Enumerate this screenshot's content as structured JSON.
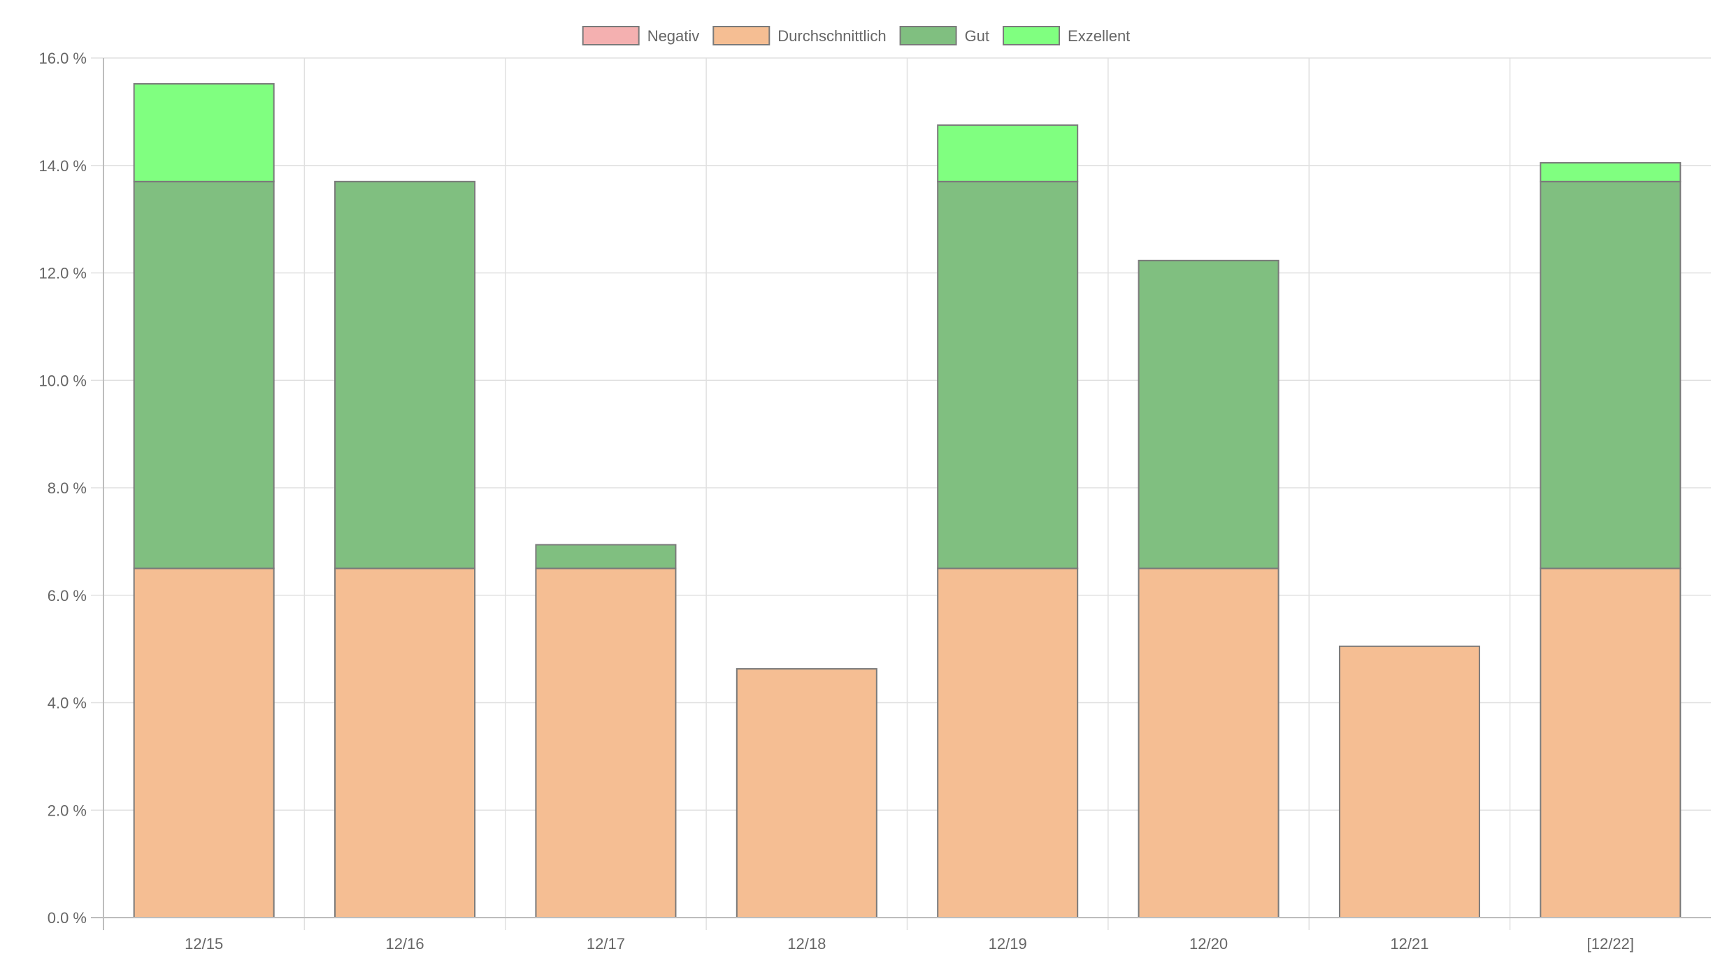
{
  "chart_data": {
    "type": "bar",
    "stacked": true,
    "title": "",
    "xlabel": "",
    "ylabel": "",
    "categories": [
      "12/15",
      "12/16",
      "12/17",
      "12/18",
      "12/19",
      "12/20",
      "12/21",
      "[12/22]"
    ],
    "series": [
      {
        "name": "Negativ",
        "color": "#f4b0b0",
        "values": [
          0,
          0,
          0,
          0,
          0,
          0,
          0,
          0
        ]
      },
      {
        "name": "Durchschnittlich",
        "color": "#f5be93",
        "values": [
          6.5,
          6.5,
          6.5,
          4.63,
          6.5,
          6.5,
          5.05,
          6.5
        ]
      },
      {
        "name": "Gut",
        "color": "#80bf80",
        "values": [
          7.2,
          7.2,
          0.44,
          0,
          7.2,
          5.73,
          0,
          7.2
        ]
      },
      {
        "name": "Exzellent",
        "color": "#80ff80",
        "values": [
          1.82,
          0,
          0,
          0,
          1.05,
          0,
          0,
          0.35
        ]
      }
    ],
    "ylim": [
      0,
      16
    ],
    "yticks": [
      0,
      2,
      4,
      6,
      8,
      10,
      12,
      14,
      16
    ],
    "ytick_labels": [
      "0.0 %",
      "2.0 %",
      "4.0 %",
      "6.0 %",
      "8.0 %",
      "10.0 %",
      "12.0 %",
      "14.0 %",
      "16.0 %"
    ],
    "grid": true,
    "legend_position": "top-center",
    "bar_border_color": "#7a7a7a",
    "grid_color": "#e0e0e0",
    "axis_color": "#bdbdbd"
  }
}
